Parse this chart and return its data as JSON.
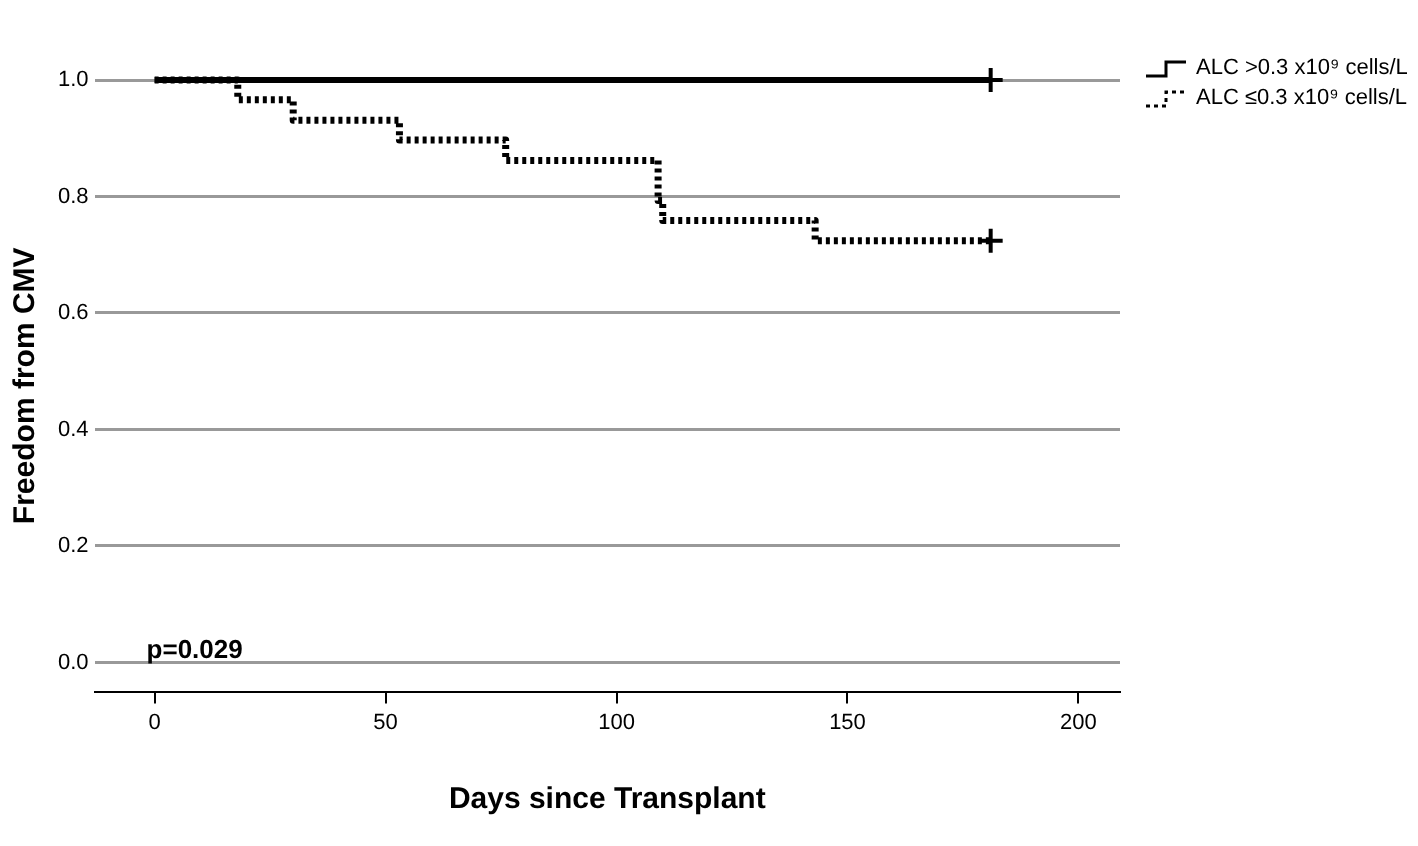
{
  "chart_data": {
    "type": "step",
    "xlabel": "Days since Transplant",
    "ylabel": "Freedom from CMV",
    "xlim": [
      -13,
      209
    ],
    "xticks": [
      0,
      50,
      100,
      150,
      200
    ],
    "ylim": [
      -0.05,
      1
    ],
    "yticks": [
      {
        "value": 0,
        "label": "0.0"
      },
      {
        "value": 0.2,
        "label": "0.2"
      },
      {
        "value": 0.4,
        "label": "0.4"
      },
      {
        "value": 0.6,
        "label": "0.6"
      },
      {
        "value": 0.8,
        "label": "0.8"
      },
      {
        "value": 1,
        "label": "1.0"
      }
    ],
    "grid": "y",
    "legend": "right",
    "marker": "none",
    "series": [
      {
        "name": "ALC >0.3 x10⁹ cells/L",
        "color": "#000000",
        "line_style": "solid",
        "x": [
          0,
          181
        ],
        "values": [
          1,
          1
        ]
      },
      {
        "name": "ALC ≤0.3 x10⁹ cells/L",
        "color": "#000000",
        "line_style": "dotted",
        "x": [
          0,
          18,
          30,
          53,
          76,
          109,
          110,
          143,
          181
        ],
        "values": [
          1,
          0.966,
          0.931,
          0.897,
          0.862,
          0.793,
          0.759,
          0.724,
          0.724
        ]
      },
      {
        "type": "scatter",
        "marker": "cross",
        "color": "#000000",
        "x": [
          181,
          181
        ],
        "values": [
          1,
          0.724
        ]
      }
    ],
    "annotations": [
      "p=0.029"
    ]
  }
}
